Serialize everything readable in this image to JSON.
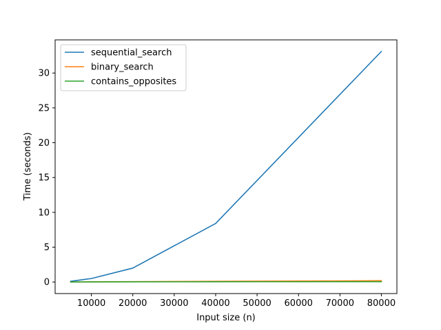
{
  "chart_data": {
    "type": "line",
    "title": "",
    "xlabel": "Input size (n)",
    "ylabel": "Time (seconds)",
    "xlim": [
      1250,
      83750
    ],
    "ylim": [
      -1.66,
      34.76
    ],
    "xticks": [
      10000,
      20000,
      30000,
      40000,
      50000,
      60000,
      70000,
      80000
    ],
    "yticks": [
      0,
      5,
      10,
      15,
      20,
      25,
      30
    ],
    "grid": false,
    "legend_position": "top-left",
    "x": [
      5000,
      10000,
      20000,
      40000,
      80000
    ],
    "series": [
      {
        "name": "sequential_search",
        "color": "#1f77b4",
        "values": [
          0.1,
          0.5,
          2.0,
          8.4,
          33.1
        ]
      },
      {
        "name": "binary_search",
        "color": "#ff7f0e",
        "values": [
          0.0,
          0.02,
          0.05,
          0.1,
          0.18
        ]
      },
      {
        "name": "contains_opposites",
        "color": "#2ca02c",
        "values": [
          0.0,
          0.01,
          0.02,
          0.04,
          0.05
        ]
      }
    ]
  }
}
